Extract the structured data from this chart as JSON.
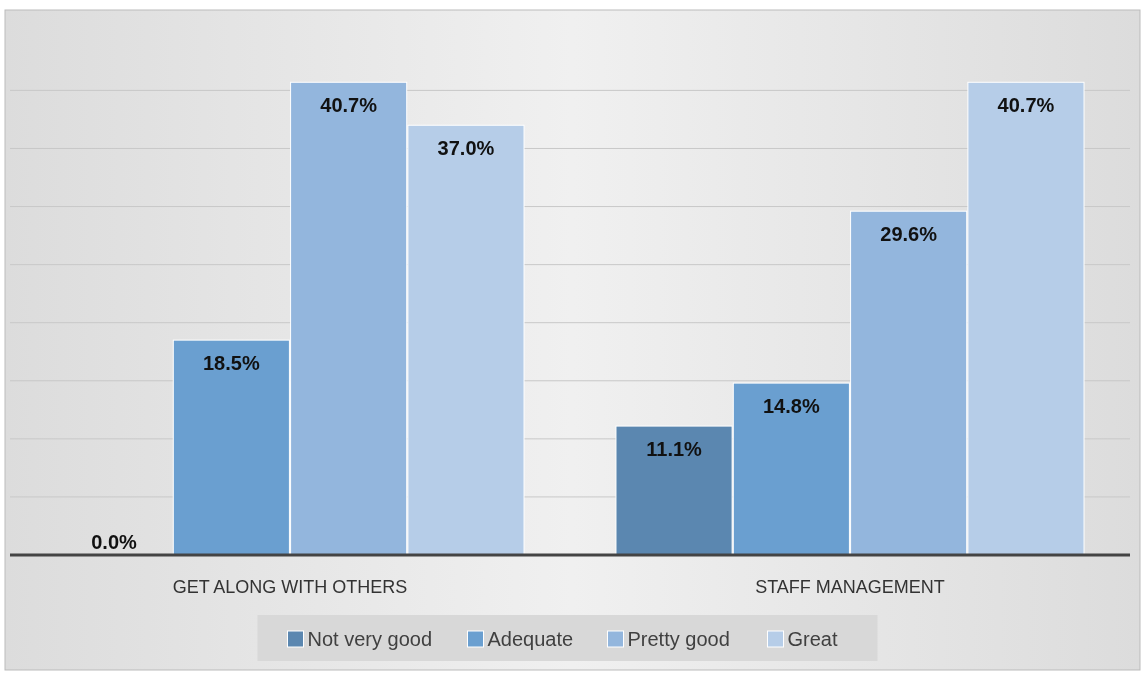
{
  "chart_data": {
    "type": "bar",
    "categories": [
      "GET ALONG WITH OTHERS",
      "STAFF MANAGEMENT"
    ],
    "series": [
      {
        "name": "Not very good",
        "color": "#5b87b0",
        "values": [
          0.0,
          11.1
        ],
        "value_labels": [
          "0.0%",
          "11.1%"
        ]
      },
      {
        "name": "Adequate",
        "color": "#6a9fd0",
        "values": [
          18.5,
          14.8
        ],
        "value_labels": [
          "18.5%",
          "14.8%"
        ]
      },
      {
        "name": "Pretty good",
        "color": "#93b6dd",
        "values": [
          40.7,
          29.6
        ],
        "value_labels": [
          "40.7%",
          "29.6%"
        ]
      },
      {
        "name": "Great",
        "color": "#b6cde8",
        "values": [
          37.0,
          40.7
        ],
        "value_labels": [
          "37.0%",
          "40.7%"
        ]
      }
    ],
    "tick_labels": "x",
    "grid": "y",
    "legend": "bottom"
  }
}
